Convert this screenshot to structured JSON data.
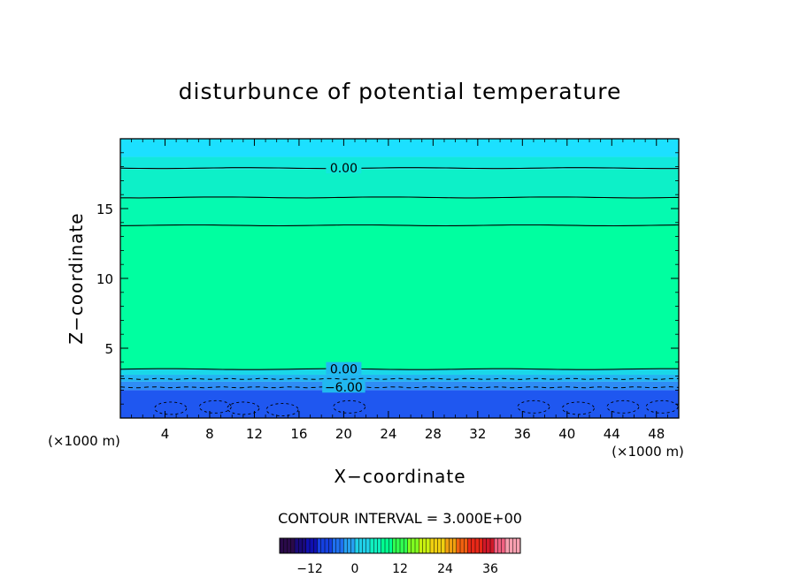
{
  "chart_data": {
    "type": "heatmap",
    "title": "disturbunce of potential temperature",
    "xlabel": "X−coordinate",
    "ylabel": "Z−coordinate",
    "x_unit": "(×1000 m)",
    "y_unit": "(×1000 m)",
    "xlim": [
      0,
      50
    ],
    "ylim": [
      0,
      20
    ],
    "x_ticks": [
      4,
      8,
      12,
      16,
      20,
      24,
      28,
      32,
      36,
      40,
      44,
      48
    ],
    "y_ticks": [
      5,
      10,
      15
    ],
    "fill_bands": [
      {
        "z0": 0,
        "z1": 2,
        "color": "#1f57f0"
      },
      {
        "z0": 2,
        "z1": 2.6,
        "color": "#2f8df5"
      },
      {
        "z0": 2.6,
        "z1": 3.1,
        "color": "#24b4f2"
      },
      {
        "z0": 3.1,
        "z1": 3.5,
        "color": "#19d8e8"
      },
      {
        "z0": 3.5,
        "z1": 13.8,
        "color": "#00ffa0"
      },
      {
        "z0": 13.8,
        "z1": 15.8,
        "color": "#05fab0"
      },
      {
        "z0": 15.8,
        "z1": 17.8,
        "color": "#0df0c8"
      },
      {
        "z0": 17.8,
        "z1": 18.7,
        "color": "#12e8dc"
      },
      {
        "z0": 18.7,
        "z1": 20,
        "color": "#1ce0ff"
      }
    ],
    "contours": [
      {
        "level": 0,
        "z": 17.9,
        "style": "solid",
        "label": "0.00"
      },
      {
        "level": 3,
        "z": 15.8,
        "style": "solid",
        "label": ""
      },
      {
        "level": 6,
        "z": 13.8,
        "style": "solid",
        "label": ""
      },
      {
        "level": 0,
        "z": 3.5,
        "style": "solid",
        "label": "0.00"
      },
      {
        "level": -3,
        "z": 2.8,
        "style": "dashed",
        "label": ""
      },
      {
        "level": -6,
        "z": 2.2,
        "style": "dashed",
        "label": "−6.00"
      }
    ],
    "contour_interval_text": "CONTOUR INTERVAL = 3.000E+00",
    "colorbar": {
      "ticks": [
        "−12",
        "0",
        "12",
        "24",
        "36"
      ],
      "min": -20,
      "max": 44,
      "tick_values": [
        -12,
        0,
        12,
        24,
        36
      ],
      "colors": [
        "#2a0a4a",
        "#1a0a7a",
        "#1010b0",
        "#1540e0",
        "#1f70f0",
        "#26a0f0",
        "#20d0e8",
        "#10f0c0",
        "#00ff90",
        "#30ff50",
        "#80ff20",
        "#c8f010",
        "#f0d010",
        "#f0a010",
        "#f06010",
        "#e82818",
        "#d01828",
        "#f06080",
        "#f8a0b0"
      ]
    }
  }
}
